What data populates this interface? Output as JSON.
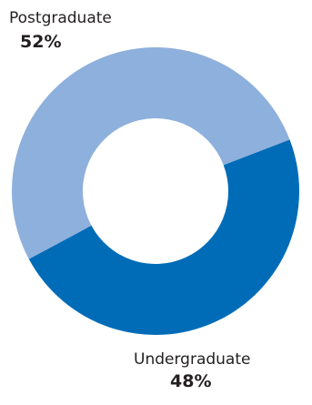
{
  "chart_data": {
    "type": "pie",
    "variant": "donut",
    "title": "",
    "slices": [
      {
        "label": "Postgraduate",
        "value": 52,
        "display": "52%",
        "color": "#8eb0dc"
      },
      {
        "label": "Undergraduate",
        "value": 48,
        "display": "48%",
        "color": "#006cb7"
      }
    ],
    "legend": "none",
    "label_placement": "outside"
  }
}
